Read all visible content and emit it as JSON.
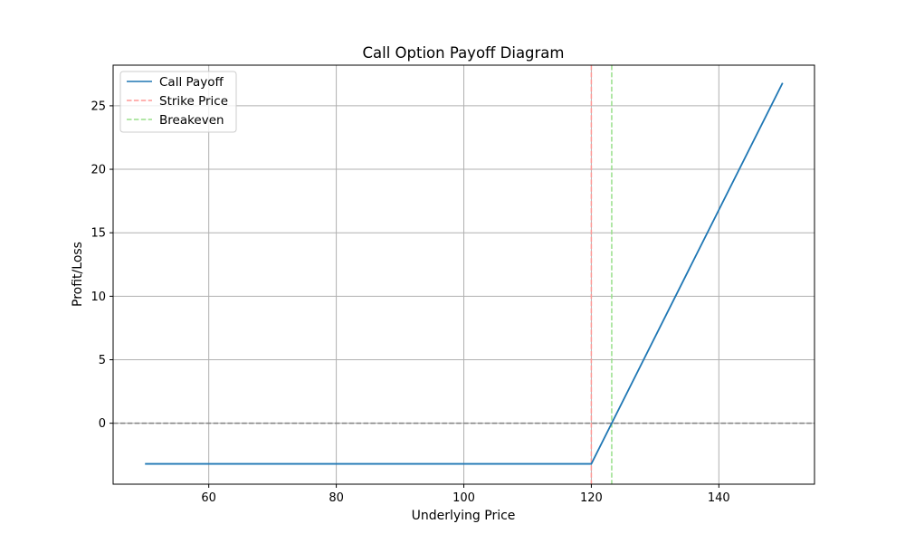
{
  "chart_data": {
    "type": "line",
    "title": "Call Option Payoff Diagram",
    "xlabel": "Underlying Price",
    "ylabel": "Profit/Loss",
    "xlim": [
      45,
      155
    ],
    "ylim": [
      -4.8,
      28.2
    ],
    "xticks": [
      60,
      80,
      100,
      120,
      140
    ],
    "yticks": [
      0,
      5,
      10,
      15,
      20,
      25
    ],
    "grid": true,
    "legend_position": "upper-left",
    "series": [
      {
        "name": "Call Payoff",
        "color": "#1f77b4",
        "style": "solid",
        "x": [
          50,
          120,
          150
        ],
        "y": [
          -3.2,
          -3.2,
          26.8
        ]
      }
    ],
    "reference_lines": [
      {
        "name": "Strike Price",
        "orientation": "vertical",
        "value": 120,
        "color": "#ff9896",
        "style": "dashed",
        "in_legend": true
      },
      {
        "name": "Breakeven",
        "orientation": "vertical",
        "value": 123.2,
        "color": "#98df8a",
        "style": "dashed",
        "in_legend": true
      },
      {
        "name": "",
        "orientation": "horizontal",
        "value": 0,
        "color": "#808080",
        "style": "dashed",
        "in_legend": false
      }
    ]
  }
}
